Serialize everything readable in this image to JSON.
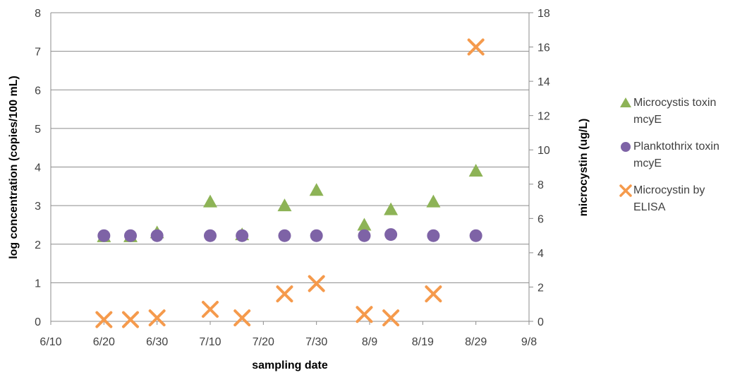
{
  "chart_data": {
    "type": "scatter",
    "xlabel": "sampling date",
    "ylabel": "log concentration (copies/100 mL)",
    "y2label": "microcystin (ug/L)",
    "x_ticks": [
      "6/10",
      "6/20",
      "6/30",
      "7/10",
      "7/20",
      "7/30",
      "8/9",
      "8/19",
      "8/29",
      "9/8"
    ],
    "xlim": [
      "6/10",
      "9/8"
    ],
    "ylim": [
      0,
      8
    ],
    "y_ticks": [
      0,
      1,
      2,
      3,
      4,
      5,
      6,
      7,
      8
    ],
    "y2lim": [
      0,
      18
    ],
    "y2_ticks": [
      0,
      2,
      4,
      6,
      8,
      10,
      12,
      14,
      16,
      18
    ],
    "grid": "horizontal",
    "legend_position": "right",
    "series": [
      {
        "name": "Microcystis toxin mcyE",
        "marker": "triangle",
        "color": "#8DB356",
        "axis": "left",
        "x": [
          "6/20",
          "6/25",
          "6/30",
          "7/10",
          "7/16",
          "7/24",
          "7/30",
          "8/8",
          "8/13",
          "8/21",
          "8/29"
        ],
        "y": [
          2.2,
          2.2,
          2.3,
          3.1,
          2.25,
          3.0,
          3.4,
          2.5,
          2.9,
          3.1,
          3.9
        ]
      },
      {
        "name": "Planktothrix toxin mcyE",
        "marker": "circle",
        "color": "#7E63A6",
        "axis": "left",
        "x": [
          "6/20",
          "6/25",
          "6/30",
          "7/10",
          "7/16",
          "7/24",
          "7/30",
          "8/8",
          "8/13",
          "8/21",
          "8/29"
        ],
        "y": [
          2.22,
          2.22,
          2.22,
          2.22,
          2.22,
          2.22,
          2.22,
          2.22,
          2.25,
          2.22,
          2.22
        ]
      },
      {
        "name": "Microcystin by ELISA",
        "marker": "x",
        "color": "#F59A4C",
        "axis": "right",
        "x": [
          "6/20",
          "6/25",
          "6/30",
          "7/10",
          "7/16",
          "7/24",
          "7/30",
          "8/8",
          "8/13",
          "8/21",
          "8/29"
        ],
        "y": [
          0.1,
          0.1,
          0.2,
          0.7,
          0.2,
          1.6,
          2.2,
          0.4,
          0.2,
          1.6,
          16.0
        ]
      }
    ]
  }
}
